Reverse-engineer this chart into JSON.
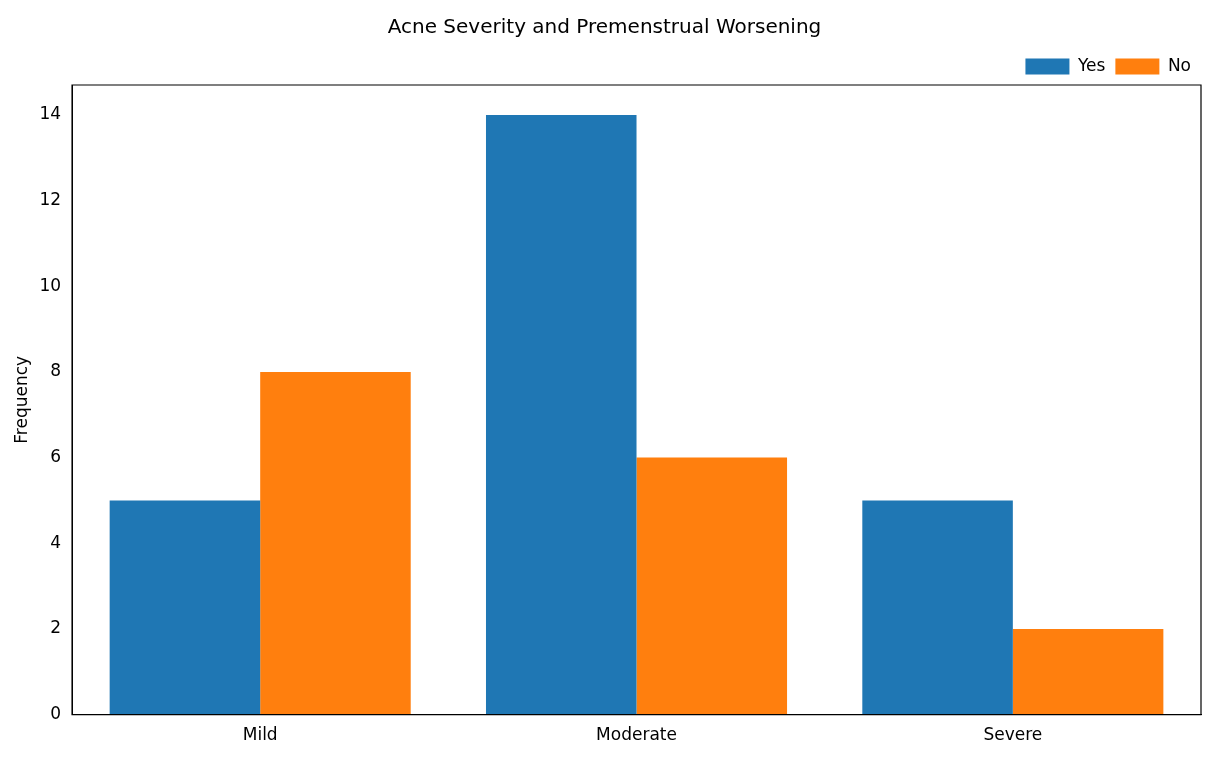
{
  "chart_data": {
    "type": "bar",
    "title": "Acne Severity and Premenstrual Worsening",
    "ylabel": "Frequency",
    "categories": [
      "Mild",
      "Moderate",
      "Severe"
    ],
    "series": [
      {
        "name": "Yes",
        "color": "#1f77b4",
        "values": [
          5,
          14,
          5
        ]
      },
      {
        "name": "No",
        "color": "#ff7f0e",
        "values": [
          8,
          6,
          2
        ]
      }
    ],
    "ylim": [
      0,
      14.7
    ],
    "yticks": [
      0,
      2,
      4,
      6,
      8,
      10,
      12,
      14
    ],
    "grid": false,
    "legend": "top right"
  }
}
